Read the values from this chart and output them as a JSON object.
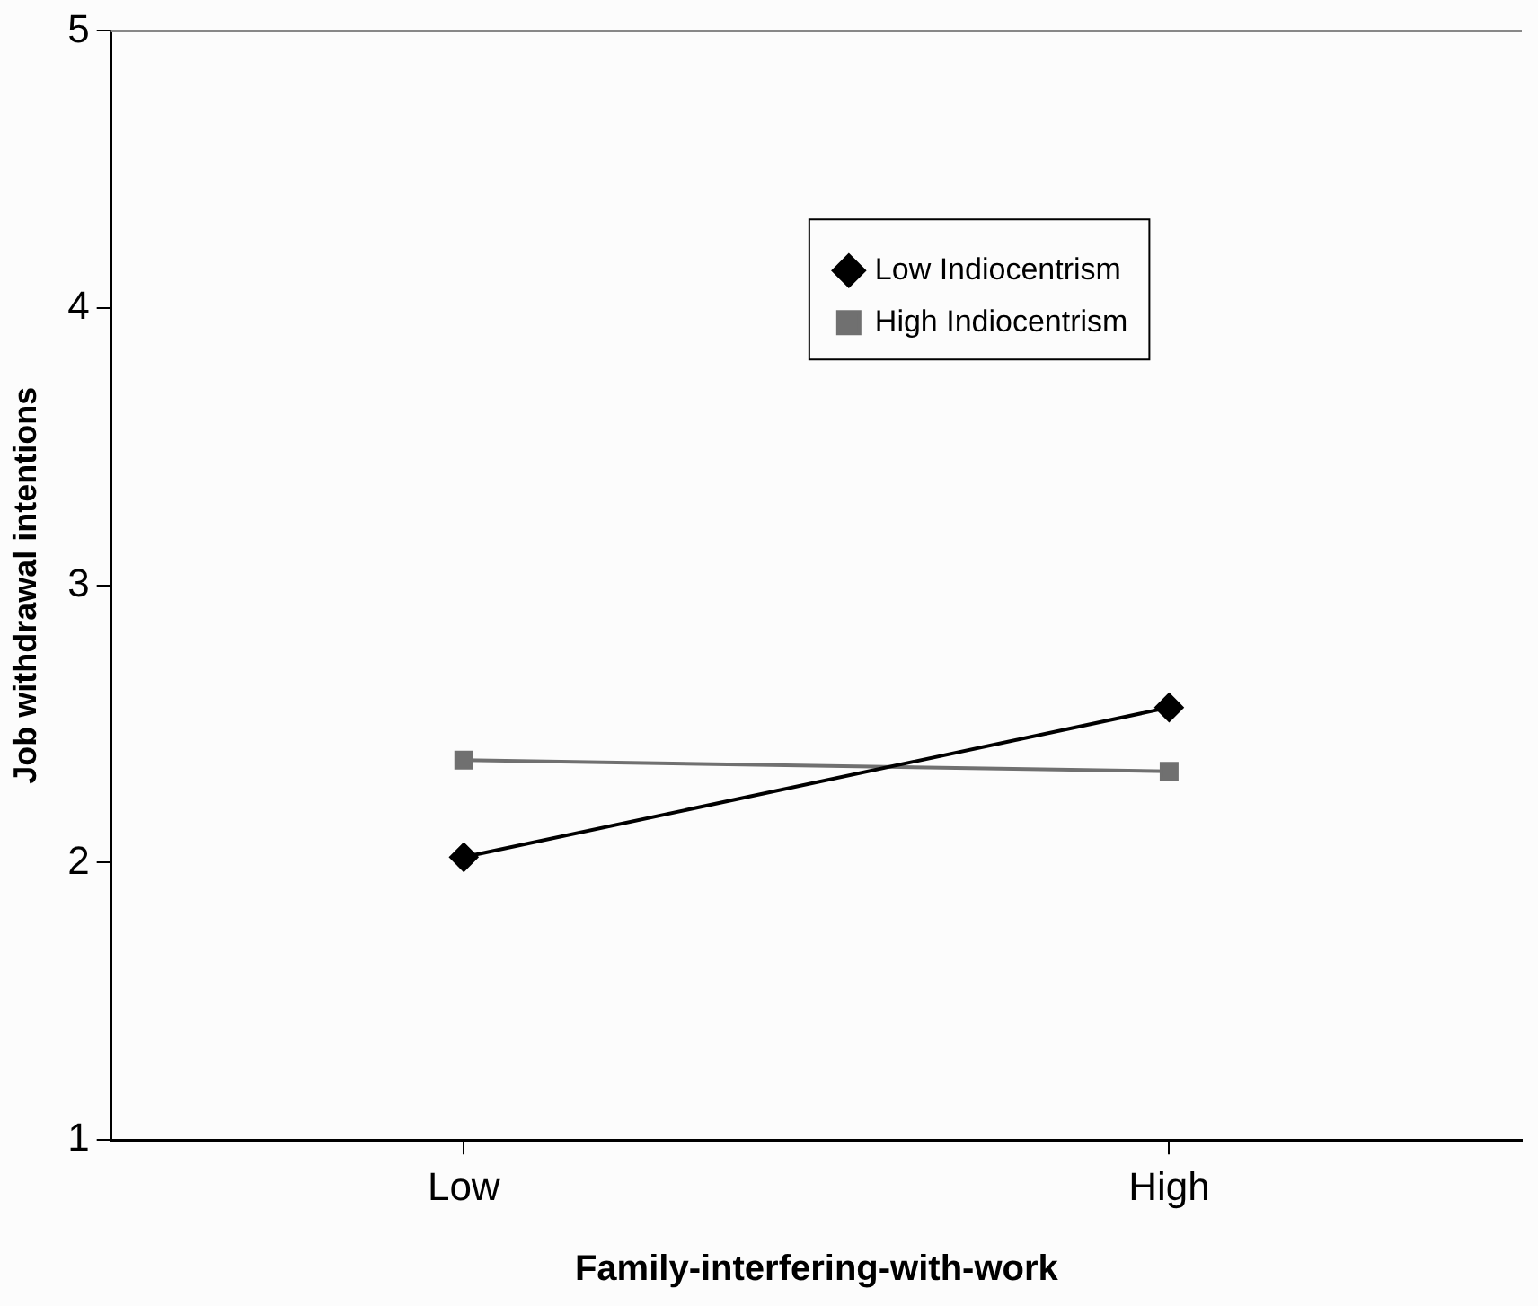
{
  "chart_data": {
    "type": "line",
    "xlabel": "Family-interfering-with-work",
    "ylabel": "Job withdrawal intentions",
    "categories": [
      "Low",
      "High"
    ],
    "series": [
      {
        "name": "Low Indiocentrism",
        "color": "#000000",
        "marker": "diamond",
        "values": [
          2.02,
          2.56
        ]
      },
      {
        "name": "High Indiocentrism",
        "color": "#707070",
        "marker": "square",
        "values": [
          2.37,
          2.33
        ]
      }
    ],
    "ylim": [
      1,
      5
    ],
    "yticks": [
      1,
      2,
      3,
      4,
      5
    ],
    "grid": false,
    "legend": "top right",
    "line_style": "solid"
  }
}
